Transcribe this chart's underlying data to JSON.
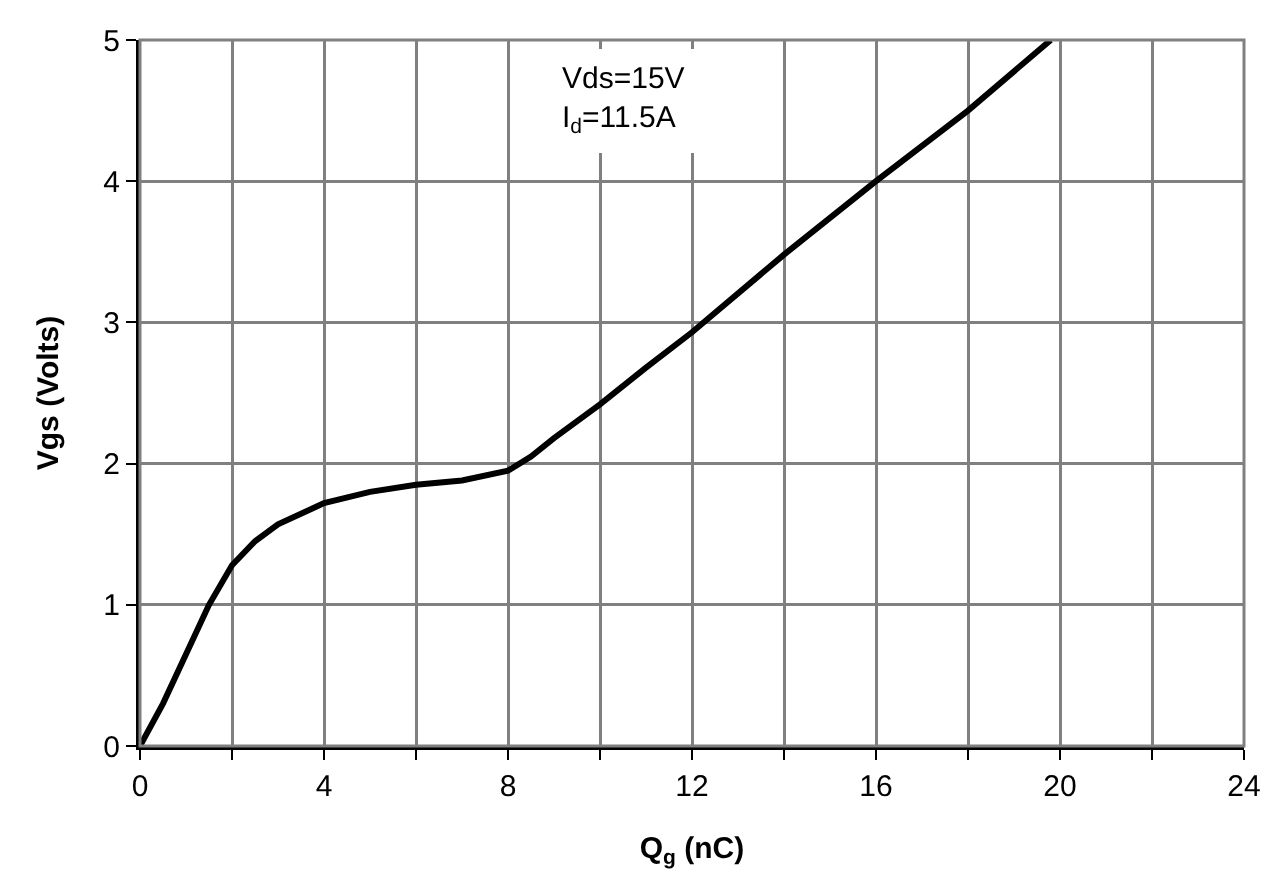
{
  "chart_data": {
    "type": "line",
    "xlabel": "Q$_{g}$ (nC)",
    "ylabel": "Vgs (Volts)",
    "annotations": [
      "Vds=15V\nI$_{d}$=11.5A"
    ],
    "series": [
      {
        "color": "#000000",
        "x": [
          0,
          0.5,
          1,
          1.5,
          2,
          2.5,
          3,
          4,
          5,
          6,
          7,
          8,
          8.5,
          9,
          10,
          11,
          12,
          14,
          16,
          18,
          19.8
        ],
        "values": [
          0,
          0.3,
          0.65,
          1.0,
          1.28,
          1.45,
          1.57,
          1.72,
          1.8,
          1.85,
          1.88,
          1.95,
          2.05,
          2.18,
          2.42,
          2.68,
          2.93,
          3.48,
          4.0,
          4.5,
          5.0
        ]
      }
    ],
    "xlim": [
      0,
      24
    ],
    "ylim": [
      0,
      5
    ],
    "xticks": [
      0,
      {
        "value": 2,
        "label": null
      },
      4,
      {
        "value": 6,
        "label": null
      },
      8,
      {
        "value": 10,
        "label": null
      },
      12,
      {
        "value": 14,
        "label": null
      },
      16,
      {
        "value": 18,
        "label": null
      },
      20,
      {
        "value": 22,
        "label": null
      },
      24
    ],
    "yticks": [
      0,
      1,
      2,
      3,
      4,
      5
    ],
    "grid": true,
    "marker": "none",
    "line_style": "solid"
  }
}
